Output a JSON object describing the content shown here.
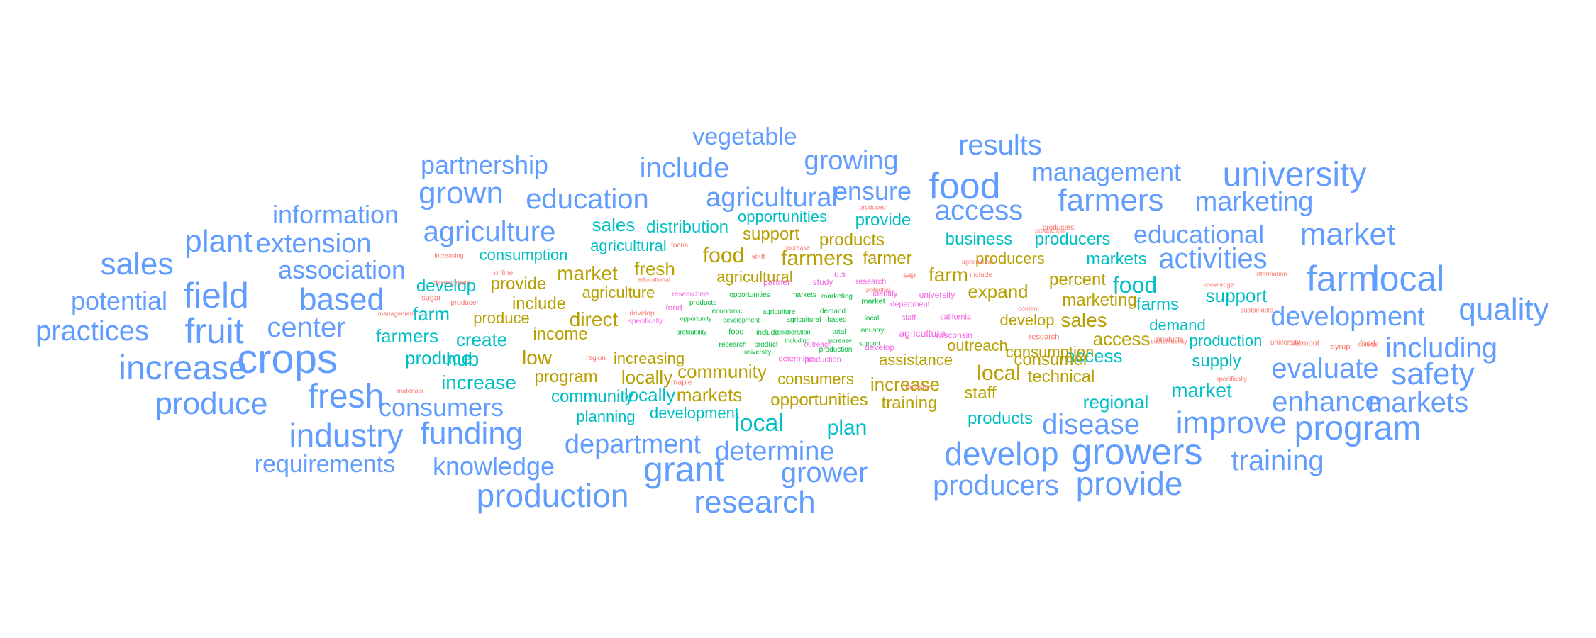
{
  "colors": {
    "blue": "#619CFF",
    "teal": "#00BFC4",
    "olive": "#B79F00",
    "green": "#00BA38",
    "magenta": "#F564E3",
    "red": "#F8766D"
  },
  "words": [
    {
      "text": "vegetable",
      "color": "blue",
      "size": 34
    },
    {
      "text": "results",
      "color": "blue",
      "size": 40
    },
    {
      "text": "partnership",
      "color": "blue",
      "size": 36
    },
    {
      "text": "include",
      "color": "blue",
      "size": 40
    },
    {
      "text": "growing",
      "color": "blue",
      "size": 38
    },
    {
      "text": "management",
      "color": "blue",
      "size": 36
    },
    {
      "text": "university",
      "color": "blue",
      "size": 48
    },
    {
      "text": "food",
      "color": "blue",
      "size": 52
    },
    {
      "text": "grown",
      "color": "blue",
      "size": 44
    },
    {
      "text": "education",
      "color": "blue",
      "size": 40
    },
    {
      "text": "agricultural",
      "color": "blue",
      "size": 38
    },
    {
      "text": "ensure",
      "color": "blue",
      "size": 36
    },
    {
      "text": "farmers",
      "color": "blue",
      "size": 44
    },
    {
      "text": "marketing",
      "color": "blue",
      "size": 38
    },
    {
      "text": "access",
      "color": "blue",
      "size": 40
    },
    {
      "text": "information",
      "color": "blue",
      "size": 36
    },
    {
      "text": "agriculture",
      "color": "blue",
      "size": 40
    },
    {
      "text": "educational",
      "color": "blue",
      "size": 36
    },
    {
      "text": "market",
      "color": "blue",
      "size": 44
    },
    {
      "text": "plant",
      "color": "blue",
      "size": 44
    },
    {
      "text": "extension",
      "color": "blue",
      "size": 38
    },
    {
      "text": "activities",
      "color": "blue",
      "size": 40
    },
    {
      "text": "sales",
      "color": "blue",
      "size": 44
    },
    {
      "text": "association",
      "color": "blue",
      "size": 36
    },
    {
      "text": "farm",
      "color": "blue",
      "size": 50
    },
    {
      "text": "local",
      "color": "blue",
      "size": 50
    },
    {
      "text": "field",
      "color": "blue",
      "size": 50
    },
    {
      "text": "based",
      "color": "blue",
      "size": 44
    },
    {
      "text": "potential",
      "color": "blue",
      "size": 36
    },
    {
      "text": "development",
      "color": "blue",
      "size": 38
    },
    {
      "text": "quality",
      "color": "blue",
      "size": 44
    },
    {
      "text": "practices",
      "color": "blue",
      "size": 40
    },
    {
      "text": "fruit",
      "color": "blue",
      "size": 50
    },
    {
      "text": "center",
      "color": "blue",
      "size": 40
    },
    {
      "text": "including",
      "color": "blue",
      "size": 40
    },
    {
      "text": "crops",
      "color": "blue",
      "size": 58
    },
    {
      "text": "increase",
      "color": "blue",
      "size": 48
    },
    {
      "text": "evaluate",
      "color": "blue",
      "size": 40
    },
    {
      "text": "safety",
      "color": "blue",
      "size": 44
    },
    {
      "text": "fresh",
      "color": "blue",
      "size": 48
    },
    {
      "text": "produce",
      "color": "blue",
      "size": 44
    },
    {
      "text": "enhance",
      "color": "blue",
      "size": 40
    },
    {
      "text": "markets",
      "color": "blue",
      "size": 40
    },
    {
      "text": "consumers",
      "color": "blue",
      "size": 36
    },
    {
      "text": "industry",
      "color": "blue",
      "size": 46
    },
    {
      "text": "funding",
      "color": "blue",
      "size": 44
    },
    {
      "text": "disease",
      "color": "blue",
      "size": 40
    },
    {
      "text": "improve",
      "color": "blue",
      "size": 44
    },
    {
      "text": "program",
      "color": "blue",
      "size": 48
    },
    {
      "text": "department",
      "color": "blue",
      "size": 38
    },
    {
      "text": "develop",
      "color": "blue",
      "size": 46
    },
    {
      "text": "growers",
      "color": "blue",
      "size": 52
    },
    {
      "text": "requirements",
      "color": "blue",
      "size": 34
    },
    {
      "text": "knowledge",
      "color": "blue",
      "size": 36
    },
    {
      "text": "grant",
      "color": "blue",
      "size": 50
    },
    {
      "text": "determine",
      "color": "blue",
      "size": 38
    },
    {
      "text": "training",
      "color": "blue",
      "size": 40
    },
    {
      "text": "grower",
      "color": "blue",
      "size": 40
    },
    {
      "text": "producers",
      "color": "blue",
      "size": 40
    },
    {
      "text": "provide",
      "color": "blue",
      "size": 46
    },
    {
      "text": "production",
      "color": "blue",
      "size": 46
    },
    {
      "text": "research",
      "color": "blue",
      "size": 44
    },
    {
      "text": "sales",
      "color": "teal",
      "size": 26
    },
    {
      "text": "distribution",
      "color": "teal",
      "size": 24
    },
    {
      "text": "opportunities",
      "color": "teal",
      "size": 22
    },
    {
      "text": "provide",
      "color": "teal",
      "size": 24
    },
    {
      "text": "business",
      "color": "teal",
      "size": 24
    },
    {
      "text": "producers",
      "color": "teal",
      "size": 24
    },
    {
      "text": "agricultural",
      "color": "teal",
      "size": 22
    },
    {
      "text": "consumption",
      "color": "teal",
      "size": 22
    },
    {
      "text": "markets",
      "color": "teal",
      "size": 24
    },
    {
      "text": "food",
      "color": "teal",
      "size": 32
    },
    {
      "text": "develop",
      "color": "teal",
      "size": 24
    },
    {
      "text": "farms",
      "color": "teal",
      "size": 24
    },
    {
      "text": "support",
      "color": "teal",
      "size": 26
    },
    {
      "text": "farm",
      "color": "teal",
      "size": 26
    },
    {
      "text": "demand",
      "color": "teal",
      "size": 22
    },
    {
      "text": "farmers",
      "color": "teal",
      "size": 26
    },
    {
      "text": "create",
      "color": "teal",
      "size": 26
    },
    {
      "text": "production",
      "color": "teal",
      "size": 22
    },
    {
      "text": "produce",
      "color": "teal",
      "size": 26
    },
    {
      "text": "hub",
      "color": "teal",
      "size": 28
    },
    {
      "text": "access",
      "color": "teal",
      "size": 26
    },
    {
      "text": "supply",
      "color": "teal",
      "size": 24
    },
    {
      "text": "increase",
      "color": "teal",
      "size": 28
    },
    {
      "text": "market",
      "color": "teal",
      "size": 28
    },
    {
      "text": "community",
      "color": "teal",
      "size": 24
    },
    {
      "text": "locally",
      "color": "teal",
      "size": 26
    },
    {
      "text": "regional",
      "color": "teal",
      "size": 26
    },
    {
      "text": "planning",
      "color": "teal",
      "size": 22
    },
    {
      "text": "development",
      "color": "teal",
      "size": 22
    },
    {
      "text": "local",
      "color": "teal",
      "size": 34
    },
    {
      "text": "plan",
      "color": "teal",
      "size": 30
    },
    {
      "text": "products",
      "color": "teal",
      "size": 24
    },
    {
      "text": "support",
      "color": "olive",
      "size": 24
    },
    {
      "text": "products",
      "color": "olive",
      "size": 24
    },
    {
      "text": "food",
      "color": "olive",
      "size": 30
    },
    {
      "text": "farmers",
      "color": "olive",
      "size": 30
    },
    {
      "text": "farmer",
      "color": "olive",
      "size": 24
    },
    {
      "text": "fresh",
      "color": "olive",
      "size": 26
    },
    {
      "text": "farm",
      "color": "olive",
      "size": 28
    },
    {
      "text": "producers",
      "color": "olive",
      "size": 22
    },
    {
      "text": "market",
      "color": "olive",
      "size": 28
    },
    {
      "text": "agricultural",
      "color": "olive",
      "size": 22
    },
    {
      "text": "provide",
      "color": "olive",
      "size": 24
    },
    {
      "text": "expand",
      "color": "olive",
      "size": 26
    },
    {
      "text": "percent",
      "color": "olive",
      "size": 24
    },
    {
      "text": "agriculture",
      "color": "olive",
      "size": 22
    },
    {
      "text": "marketing",
      "color": "olive",
      "size": 24
    },
    {
      "text": "include",
      "color": "olive",
      "size": 24
    },
    {
      "text": "produce",
      "color": "olive",
      "size": 22
    },
    {
      "text": "direct",
      "color": "olive",
      "size": 28
    },
    {
      "text": "develop",
      "color": "olive",
      "size": 22
    },
    {
      "text": "sales",
      "color": "olive",
      "size": 28
    },
    {
      "text": "income",
      "color": "olive",
      "size": 24
    },
    {
      "text": "access",
      "color": "olive",
      "size": 26
    },
    {
      "text": "outreach",
      "color": "olive",
      "size": 22
    },
    {
      "text": "consumption",
      "color": "olive",
      "size": 22
    },
    {
      "text": "low",
      "color": "olive",
      "size": 28
    },
    {
      "text": "increasing",
      "color": "olive",
      "size": 22
    },
    {
      "text": "assistance",
      "color": "olive",
      "size": 22
    },
    {
      "text": "consumer",
      "color": "olive",
      "size": 24
    },
    {
      "text": "community",
      "color": "olive",
      "size": 26
    },
    {
      "text": "program",
      "color": "olive",
      "size": 24
    },
    {
      "text": "locally",
      "color": "olive",
      "size": 26
    },
    {
      "text": "local",
      "color": "olive",
      "size": 30
    },
    {
      "text": "technical",
      "color": "olive",
      "size": 24
    },
    {
      "text": "consumers",
      "color": "olive",
      "size": 22
    },
    {
      "text": "increase",
      "color": "olive",
      "size": 26
    },
    {
      "text": "staff",
      "color": "olive",
      "size": 24
    },
    {
      "text": "markets",
      "color": "olive",
      "size": 26
    },
    {
      "text": "opportunities",
      "color": "olive",
      "size": 24
    },
    {
      "text": "training",
      "color": "olive",
      "size": 24
    },
    {
      "text": "products",
      "color": "green",
      "size": 10
    },
    {
      "text": "opportunities",
      "color": "green",
      "size": 10
    },
    {
      "text": "markets",
      "color": "green",
      "size": 10
    },
    {
      "text": "marketing",
      "color": "green",
      "size": 10
    },
    {
      "text": "market",
      "color": "green",
      "size": 11
    },
    {
      "text": "economic",
      "color": "green",
      "size": 10
    },
    {
      "text": "agriculture",
      "color": "green",
      "size": 10
    },
    {
      "text": "demand",
      "color": "green",
      "size": 10
    },
    {
      "text": "opportunity",
      "color": "green",
      "size": 9
    },
    {
      "text": "development",
      "color": "green",
      "size": 9
    },
    {
      "text": "agricultural",
      "color": "green",
      "size": 10
    },
    {
      "text": "based",
      "color": "green",
      "size": 10
    },
    {
      "text": "local",
      "color": "green",
      "size": 10
    },
    {
      "text": "profitability",
      "color": "green",
      "size": 9
    },
    {
      "text": "food",
      "color": "green",
      "size": 11
    },
    {
      "text": "include",
      "color": "green",
      "size": 10
    },
    {
      "text": "collaboration",
      "color": "green",
      "size": 9
    },
    {
      "text": "total",
      "color": "green",
      "size": 10
    },
    {
      "text": "industry",
      "color": "green",
      "size": 10
    },
    {
      "text": "research",
      "color": "green",
      "size": 10
    },
    {
      "text": "product",
      "color": "green",
      "size": 10
    },
    {
      "text": "including",
      "color": "green",
      "size": 9
    },
    {
      "text": "increase",
      "color": "green",
      "size": 9
    },
    {
      "text": "support",
      "color": "green",
      "size": 9
    },
    {
      "text": "university",
      "color": "green",
      "size": 9
    },
    {
      "text": "production",
      "color": "green",
      "size": 10
    },
    {
      "text": "researchers",
      "color": "magenta",
      "size": 10
    },
    {
      "text": "food",
      "color": "magenta",
      "size": 12
    },
    {
      "text": "specifically",
      "color": "magenta",
      "size": 10
    },
    {
      "text": "partner",
      "color": "magenta",
      "size": 12
    },
    {
      "text": "study",
      "color": "magenta",
      "size": 12
    },
    {
      "text": "u.s",
      "color": "magenta",
      "size": 12
    },
    {
      "text": "research",
      "color": "magenta",
      "size": 11
    },
    {
      "text": "identify",
      "color": "magenta",
      "size": 11
    },
    {
      "text": "university",
      "color": "magenta",
      "size": 12
    },
    {
      "text": "department",
      "color": "magenta",
      "size": 11
    },
    {
      "text": "staff",
      "color": "magenta",
      "size": 11
    },
    {
      "text": "california",
      "color": "magenta",
      "size": 11
    },
    {
      "text": "agriculture",
      "color": "magenta",
      "size": 14
    },
    {
      "text": "wisconsin",
      "color": "magenta",
      "size": 12
    },
    {
      "text": "develop",
      "color": "magenta",
      "size": 12
    },
    {
      "text": "outreach",
      "color": "magenta",
      "size": 10
    },
    {
      "text": "determine",
      "color": "magenta",
      "size": 11
    },
    {
      "text": "production",
      "color": "magenta",
      "size": 11
    },
    {
      "text": "produced",
      "color": "red",
      "size": 9
    },
    {
      "text": "producers",
      "color": "red",
      "size": 10
    },
    {
      "text": "production",
      "color": "red",
      "size": 9
    },
    {
      "text": "focus",
      "color": "red",
      "size": 10
    },
    {
      "text": "increase",
      "color": "red",
      "size": 9
    },
    {
      "text": "staff",
      "color": "red",
      "size": 10
    },
    {
      "text": "increasing",
      "color": "red",
      "size": 9
    },
    {
      "text": "online",
      "color": "red",
      "size": 10
    },
    {
      "text": "educational",
      "color": "red",
      "size": 9
    },
    {
      "text": "sap",
      "color": "red",
      "size": 11
    },
    {
      "text": "include",
      "color": "red",
      "size": 10
    },
    {
      "text": "agricultural",
      "color": "red",
      "size": 9
    },
    {
      "text": "development",
      "color": "red",
      "size": 9
    },
    {
      "text": "knowledge",
      "color": "red",
      "size": 9
    },
    {
      "text": "potential",
      "color": "red",
      "size": 9
    },
    {
      "text": "information",
      "color": "red",
      "size": 9
    },
    {
      "text": "sugar",
      "color": "red",
      "size": 11
    },
    {
      "text": "producer",
      "color": "red",
      "size": 10
    },
    {
      "text": "sustainable",
      "color": "red",
      "size": 9
    },
    {
      "text": "content",
      "color": "red",
      "size": 9
    },
    {
      "text": "management",
      "color": "red",
      "size": 9
    },
    {
      "text": "develop",
      "color": "red",
      "size": 10
    },
    {
      "text": "research",
      "color": "red",
      "size": 11
    },
    {
      "text": "vermont",
      "color": "red",
      "size": 11
    },
    {
      "text": "college",
      "color": "red",
      "size": 9
    },
    {
      "text": "food",
      "color": "red",
      "size": 11
    },
    {
      "text": "region",
      "color": "red",
      "size": 10
    },
    {
      "text": "products",
      "color": "red",
      "size": 10
    },
    {
      "text": "sustainability",
      "color": "red",
      "size": 9
    },
    {
      "text": "university",
      "color": "red",
      "size": 10
    },
    {
      "text": "syrup",
      "color": "red",
      "size": 11
    },
    {
      "text": "maple",
      "color": "red",
      "size": 11
    },
    {
      "text": "industry",
      "color": "red",
      "size": 10
    },
    {
      "text": "materials",
      "color": "red",
      "size": 9
    },
    {
      "text": "specifically",
      "color": "red",
      "size": 9
    }
  ]
}
